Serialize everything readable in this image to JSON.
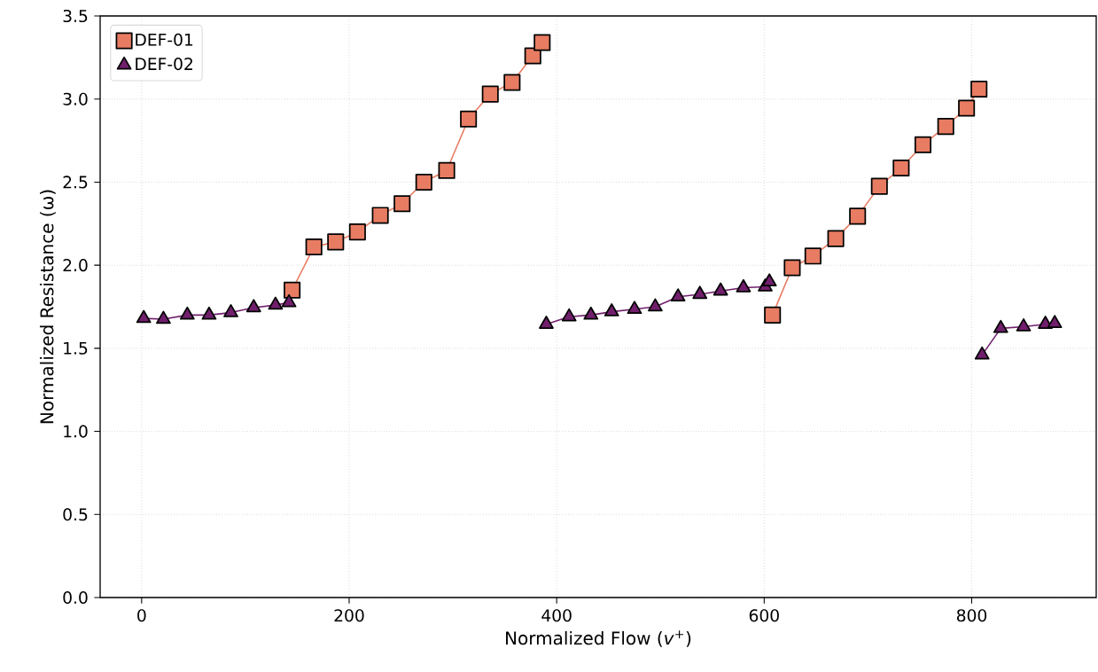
{
  "chart_data": {
    "type": "line",
    "xlabel": "Normalized Flow (*v*$^{+}$)",
    "ylabel": "Normalized Resistance (ω)",
    "xlim": [
      -40,
      920
    ],
    "xticks": [
      0,
      200,
      400,
      600,
      800
    ],
    "ylim": [
      0,
      3.5
    ],
    "yticks": [
      {
        "value": 0,
        "label": "0.0"
      },
      {
        "value": 0.5,
        "label": "0.5"
      },
      {
        "value": 1,
        "label": "1.0"
      },
      {
        "value": 1.5,
        "label": "1.5"
      },
      {
        "value": 2,
        "label": "2.0"
      },
      {
        "value": 2.5,
        "label": "2.5"
      },
      {
        "value": 3,
        "label": "3.0"
      },
      {
        "value": 3.5,
        "label": "3.5"
      }
    ],
    "grid": true,
    "legend": "top left",
    "series": [
      {
        "name": "DEF-01",
        "color": "#e77c62",
        "marker": "square",
        "x": [
          145,
          166,
          187,
          208,
          230,
          251,
          272,
          294,
          315,
          336,
          357,
          377,
          386,
          500,
          608,
          627,
          647,
          669,
          690,
          711,
          732,
          753,
          775,
          795,
          807
        ],
        "values": [
          1.85,
          2.11,
          2.14,
          2.2,
          2.3,
          2.37,
          2.5,
          2.57,
          2.88,
          3.03,
          3.1,
          3.26,
          3.34,
          null,
          1.7,
          1.985,
          2.055,
          2.16,
          2.295,
          2.475,
          2.585,
          2.725,
          2.835,
          2.945,
          3.06
        ]
      },
      {
        "name": "DEF-02",
        "color": "#711f6d",
        "marker": "triangle",
        "x": [
          2,
          21,
          44,
          65,
          86,
          108,
          129,
          142,
          260,
          390,
          412,
          433,
          453,
          475,
          495,
          517,
          538,
          558,
          580,
          601,
          605,
          700,
          810,
          828,
          850,
          871,
          880
        ],
        "values": [
          1.68,
          1.675,
          1.7,
          1.7,
          1.715,
          1.745,
          1.76,
          1.775,
          null,
          1.645,
          1.69,
          1.7,
          1.72,
          1.735,
          1.75,
          1.81,
          1.825,
          1.845,
          1.865,
          1.87,
          1.9,
          null,
          1.46,
          1.62,
          1.63,
          1.645,
          1.65
        ]
      }
    ]
  }
}
